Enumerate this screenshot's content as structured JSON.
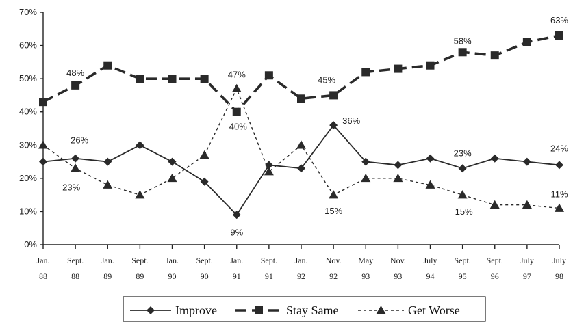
{
  "chart_data": {
    "type": "line",
    "title": "",
    "xlabel": "",
    "ylabel": "",
    "ylim": [
      0,
      70
    ],
    "yticks": [
      "0%",
      "10%",
      "20%",
      "30%",
      "40%",
      "50%",
      "60%",
      "70%"
    ],
    "categories": [
      [
        "Jan.",
        "88"
      ],
      [
        "Sept.",
        "88"
      ],
      [
        "Jan.",
        "89"
      ],
      [
        "Sept.",
        "89"
      ],
      [
        "Jan.",
        "90"
      ],
      [
        "Sept.",
        "90"
      ],
      [
        "Jan.",
        "91"
      ],
      [
        "Sept.",
        "91"
      ],
      [
        "Jan.",
        "92"
      ],
      [
        "Nov.",
        "92"
      ],
      [
        "May",
        "93"
      ],
      [
        "Nov.",
        "93"
      ],
      [
        "July",
        "94"
      ],
      [
        "Sept.",
        "95"
      ],
      [
        "Sept.",
        "96"
      ],
      [
        "July",
        "97"
      ],
      [
        "July",
        "98"
      ]
    ],
    "grid": false,
    "legend_position": "bottom",
    "series": [
      {
        "name": "Improve",
        "style": "solid",
        "marker": "diamond",
        "color": "#2a2a2a",
        "values": [
          25,
          26,
          25,
          30,
          25,
          19,
          9,
          24,
          23,
          36,
          25,
          24,
          26,
          23,
          26,
          25,
          24
        ]
      },
      {
        "name": "Stay Same",
        "style": "dashed-thick",
        "marker": "square",
        "color": "#2a2a2a",
        "values": [
          43,
          48,
          54,
          50,
          50,
          50,
          40,
          51,
          44,
          45,
          52,
          53,
          54,
          58,
          57,
          61,
          63
        ]
      },
      {
        "name": "Get Worse",
        "style": "dotted",
        "marker": "triangle",
        "color": "#2a2a2a",
        "values": [
          30,
          23,
          18,
          15,
          20,
          27,
          47,
          22,
          30,
          15,
          20,
          20,
          18,
          15,
          12,
          12,
          11
        ]
      }
    ],
    "annotations": [
      {
        "series": 1,
        "index": 1,
        "text": "48%",
        "dx": 0,
        "dy": -18
      },
      {
        "series": 1,
        "index": 6,
        "text": "40%",
        "dx": 2,
        "dy": 22
      },
      {
        "series": 1,
        "index": 9,
        "text": "45%",
        "dx": -10,
        "dy": -22
      },
      {
        "series": 1,
        "index": 13,
        "text": "58%",
        "dx": 0,
        "dy": -16
      },
      {
        "series": 1,
        "index": 16,
        "text": "63%",
        "dx": 0,
        "dy": -22
      },
      {
        "series": 0,
        "index": 1,
        "text": "26%",
        "dx": 6,
        "dy": -26
      },
      {
        "series": 0,
        "index": 6,
        "text": "9%",
        "dx": 0,
        "dy": 26
      },
      {
        "series": 0,
        "index": 9,
        "text": "36%",
        "dx": 26,
        "dy": -6
      },
      {
        "series": 0,
        "index": 13,
        "text": "23%",
        "dx": 0,
        "dy": -22
      },
      {
        "series": 0,
        "index": 16,
        "text": "24%",
        "dx": 0,
        "dy": -24
      },
      {
        "series": 2,
        "index": 1,
        "text": "23%",
        "dx": -6,
        "dy": 28
      },
      {
        "series": 2,
        "index": 6,
        "text": "47%",
        "dx": 0,
        "dy": -20
      },
      {
        "series": 2,
        "index": 9,
        "text": "15%",
        "dx": 0,
        "dy": 24
      },
      {
        "series": 2,
        "index": 13,
        "text": "15%",
        "dx": 2,
        "dy": 25
      },
      {
        "series": 2,
        "index": 16,
        "text": "11%",
        "dx": 0,
        "dy": -20
      }
    ]
  }
}
